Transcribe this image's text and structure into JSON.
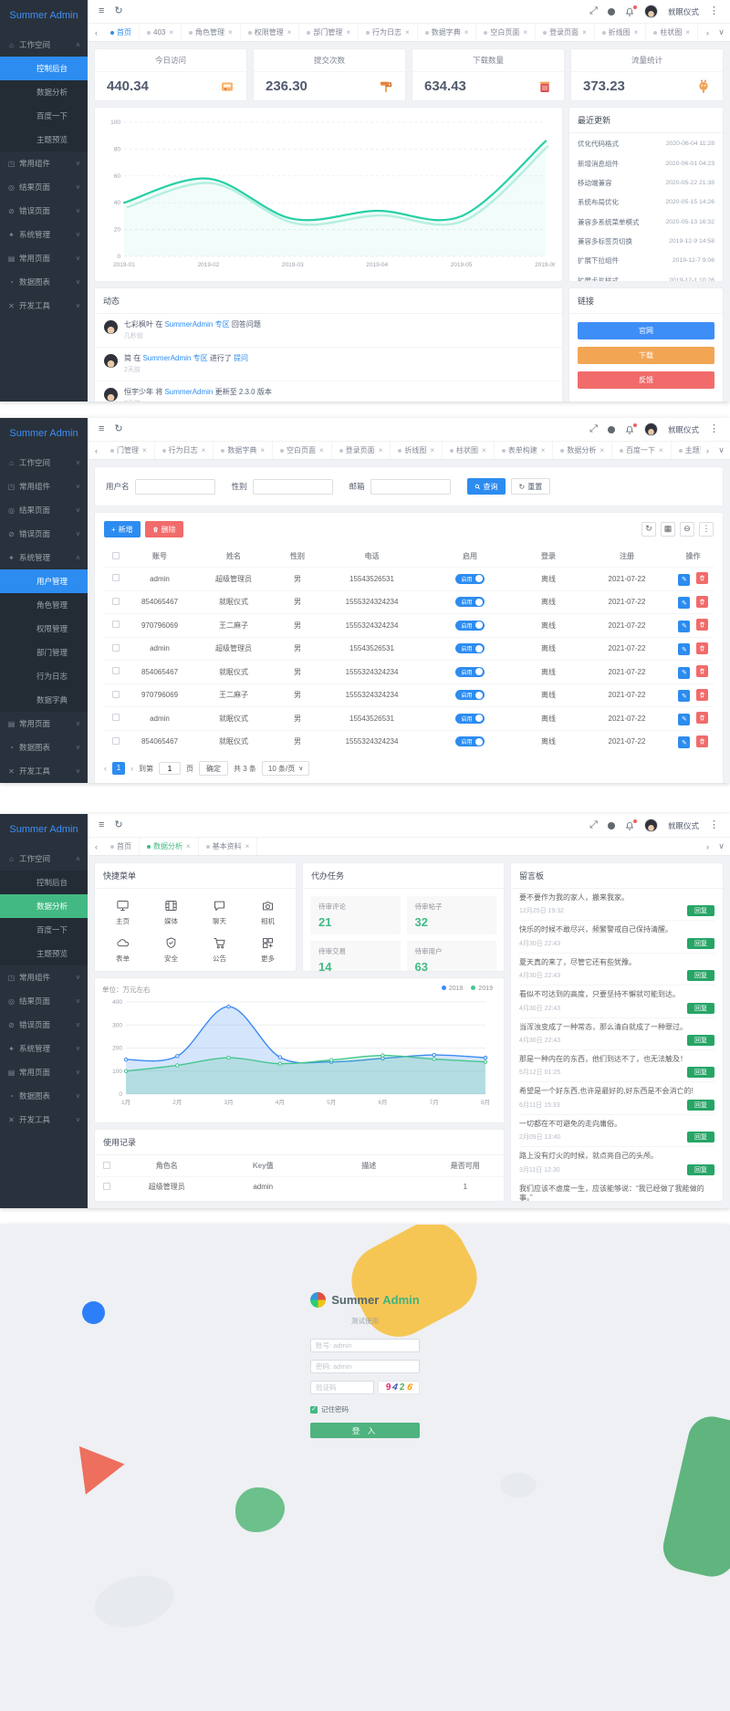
{
  "brand": "Summer Admin",
  "topbar": {
    "user": "就眠仪式"
  },
  "chrome": {
    "menu": "≡",
    "refresh": "↻",
    "fullscreen": "⤢",
    "more": "⋮",
    "back": "‹",
    "fwd": "›",
    "down": "∨",
    "plus": "+",
    "check": "✓",
    "edit": "✎",
    "cols": "▦",
    "minus": "⊖",
    "dots": "⋮"
  },
  "s1": {
    "menu": [
      {
        "ic": "⌂",
        "label": "工作空间",
        "arrow": "∧"
      },
      {
        "label": "控制后台",
        "cls": "sub active"
      },
      {
        "label": "数据分析",
        "cls": "sub"
      },
      {
        "label": "百度一下",
        "cls": "sub"
      },
      {
        "label": "主题预览",
        "cls": "sub"
      },
      {
        "ic": "◳",
        "label": "常用组件",
        "arrow": "∨"
      },
      {
        "ic": "◎",
        "label": "结果页面",
        "arrow": "∨"
      },
      {
        "ic": "⊘",
        "label": "错误页面",
        "arrow": "∨"
      },
      {
        "ic": "✦",
        "label": "系统管理",
        "arrow": "∨"
      },
      {
        "ic": "▤",
        "label": "常用页面",
        "arrow": "∨"
      },
      {
        "ic": "◔",
        "label": "数据图表",
        "arrow": "∨"
      },
      {
        "ic": "✕",
        "label": "开发工具",
        "arrow": "∨"
      }
    ],
    "tabs": [
      {
        "label": "首页",
        "cls": "active",
        "x": ""
      },
      {
        "label": "403",
        "x": "×"
      },
      {
        "label": "角色管理",
        "x": "×"
      },
      {
        "label": "权限管理",
        "x": "×"
      },
      {
        "label": "部门管理",
        "x": "×"
      },
      {
        "label": "行为日志",
        "x": "×"
      },
      {
        "label": "数据字典",
        "x": "×"
      },
      {
        "label": "空白页面",
        "x": "×"
      },
      {
        "label": "登录页面",
        "x": "×"
      },
      {
        "label": "折线图",
        "x": "×"
      },
      {
        "label": "柱状图",
        "x": "×"
      },
      {
        "label": "表单构建",
        "x": "×"
      }
    ],
    "cards": [
      {
        "title": "今日访问",
        "value": "440.34"
      },
      {
        "title": "提交次数",
        "value": "236.30"
      },
      {
        "title": "下载数量",
        "value": "634.43"
      },
      {
        "title": "流量统计",
        "value": "373.23"
      }
    ],
    "chart": {
      "type": "line",
      "x": [
        "2019-01",
        "2019-02",
        "2019-03",
        "2019-04",
        "2019-05",
        "2019-06"
      ],
      "yticks": [
        0,
        20,
        40,
        60,
        80,
        100
      ],
      "series": [
        {
          "name": "访问量",
          "color": "#27d0a5",
          "values": [
            40,
            58,
            28,
            34,
            30,
            86
          ]
        }
      ]
    },
    "updates": {
      "title": "最近更新",
      "items": [
        {
          "label": "优化代码格式",
          "time": "2020-06-04 11:28"
        },
        {
          "label": "新增消息组件",
          "time": "2020-06-01 04:23"
        },
        {
          "label": "移动端兼容",
          "time": "2020-05-22 21:38"
        },
        {
          "label": "系统布局优化",
          "time": "2020-05-15 14:26"
        },
        {
          "label": "兼容多系统菜单模式",
          "time": "2020-05-13 16:32"
        },
        {
          "label": "兼容多标签页切换",
          "time": "2019-12-9 14:58"
        },
        {
          "label": "扩展下拉组件",
          "time": "2019-12-7 9:06"
        },
        {
          "label": "扩展卡片样式",
          "time": "2019-12-1 10:26"
        }
      ]
    },
    "activity": {
      "title": "动态",
      "items": [
        {
          "user": "七彩枫叶",
          "t1": "在",
          "l1": "SummerAdmin 专区",
          "t2": "回答问题",
          "l2": "",
          "time": "几秒前"
        },
        {
          "user": "简",
          "t1": "在",
          "l1": "SummerAdmin 专区",
          "t2": "进行了",
          "l2": "提问",
          "time": "2天前"
        },
        {
          "user": "恒宇少年",
          "t1": "将",
          "l1": "SummerAdmin",
          "t2": "更新至 2.3.0 版本",
          "l2": "",
          "time": "7天前"
        }
      ]
    },
    "links": {
      "title": "链接",
      "items": [
        {
          "label": "官网",
          "cls": "blue"
        },
        {
          "label": "下载",
          "cls": "orange"
        },
        {
          "label": "反馈",
          "cls": "red"
        }
      ]
    }
  },
  "s2": {
    "menu": [
      {
        "ic": "⌂",
        "label": "工作空间",
        "arrow": "∨"
      },
      {
        "ic": "◳",
        "label": "常用组件",
        "arrow": "∨"
      },
      {
        "ic": "◎",
        "label": "结果页面",
        "arrow": "∨"
      },
      {
        "ic": "⊘",
        "label": "错误页面",
        "arrow": "∨"
      },
      {
        "ic": "✦",
        "label": "系统管理",
        "arrow": "∧"
      },
      {
        "label": "用户管理",
        "cls": "sub active"
      },
      {
        "label": "角色管理",
        "cls": "sub"
      },
      {
        "label": "权限管理",
        "cls": "sub"
      },
      {
        "label": "部门管理",
        "cls": "sub"
      },
      {
        "label": "行为日志",
        "cls": "sub"
      },
      {
        "label": "数据字典",
        "cls": "sub"
      },
      {
        "ic": "▤",
        "label": "常用页面",
        "arrow": "∨"
      },
      {
        "ic": "◔",
        "label": "数据图表",
        "arrow": "∨"
      },
      {
        "ic": "✕",
        "label": "开发工具",
        "arrow": "∨"
      }
    ],
    "tabs": [
      {
        "label": "门管理",
        "x": "×"
      },
      {
        "label": "行为日志",
        "x": "×"
      },
      {
        "label": "数据字典",
        "x": "×"
      },
      {
        "label": "空白页面",
        "x": "×"
      },
      {
        "label": "登录页面",
        "x": "×"
      },
      {
        "label": "折线图",
        "x": "×"
      },
      {
        "label": "柱状图",
        "x": "×"
      },
      {
        "label": "表单构建",
        "x": "×"
      },
      {
        "label": "数据分析",
        "x": "×"
      },
      {
        "label": "百度一下",
        "x": "×"
      },
      {
        "label": "主题预览",
        "x": "×"
      },
      {
        "label": "用户管理",
        "cls": "active",
        "x": "×"
      }
    ],
    "search": {
      "fields": [
        {
          "label": "用户名"
        },
        {
          "label": "性别"
        },
        {
          "label": "邮箱"
        }
      ],
      "query": "查询",
      "reset": "重置"
    },
    "toolbar": {
      "add": "新增",
      "del": "删除"
    },
    "table": {
      "headers": [
        "账号",
        "姓名",
        "性别",
        "电话",
        "启用",
        "登录",
        "注册",
        "操作"
      ],
      "rows": [
        {
          "account": "admin",
          "name": "超级管理员",
          "sex": "男",
          "phone": "15543526531",
          "enabled": "启用",
          "login": "离线",
          "reg": "2021-07-22"
        },
        {
          "account": "854065467",
          "name": "就眠仪式",
          "sex": "男",
          "phone": "1555324324234",
          "enabled": "启用",
          "login": "离线",
          "reg": "2021-07-22"
        },
        {
          "account": "970796069",
          "name": "王二麻子",
          "sex": "男",
          "phone": "1555324324234",
          "enabled": "启用",
          "login": "离线",
          "reg": "2021-07-22"
        },
        {
          "account": "admin",
          "name": "超级管理员",
          "sex": "男",
          "phone": "15543526531",
          "enabled": "启用",
          "login": "离线",
          "reg": "2021-07-22"
        },
        {
          "account": "854065467",
          "name": "就眠仪式",
          "sex": "男",
          "phone": "1555324324234",
          "enabled": "启用",
          "login": "离线",
          "reg": "2021-07-22"
        },
        {
          "account": "970796069",
          "name": "王二麻子",
          "sex": "男",
          "phone": "1555324324234",
          "enabled": "启用",
          "login": "离线",
          "reg": "2021-07-22"
        },
        {
          "account": "admin",
          "name": "就眠仪式",
          "sex": "男",
          "phone": "15543526531",
          "enabled": "启用",
          "login": "离线",
          "reg": "2021-07-22"
        },
        {
          "account": "854065467",
          "name": "就眠仪式",
          "sex": "男",
          "phone": "1555324324234",
          "enabled": "启用",
          "login": "离线",
          "reg": "2021-07-22"
        }
      ]
    },
    "pagination": {
      "prev": "‹",
      "page": "1",
      "next": "›",
      "jump_pre": "到第",
      "jump_val": "1",
      "jump_post": "页",
      "confirm": "确定",
      "total": "共 3 条",
      "size": "10 条/页",
      "size_arrow": "∨"
    }
  },
  "s3": {
    "menu": [
      {
        "ic": "⌂",
        "label": "工作空间",
        "arrow": "∧"
      },
      {
        "label": "控制后台",
        "cls": "sub"
      },
      {
        "label": "数据分析",
        "cls": "sub active"
      },
      {
        "label": "百度一下",
        "cls": "sub"
      },
      {
        "label": "主题预览",
        "cls": "sub"
      },
      {
        "ic": "◳",
        "label": "常用组件",
        "arrow": "∨"
      },
      {
        "ic": "◎",
        "label": "结果页面",
        "arrow": "∨"
      },
      {
        "ic": "⊘",
        "label": "错误页面",
        "arrow": "∨"
      },
      {
        "ic": "✦",
        "label": "系统管理",
        "arrow": "∨"
      },
      {
        "ic": "▤",
        "label": "常用页面",
        "arrow": "∨"
      },
      {
        "ic": "◔",
        "label": "数据图表",
        "arrow": "∨"
      },
      {
        "ic": "✕",
        "label": "开发工具",
        "arrow": "∨"
      }
    ],
    "tabs": [
      {
        "label": "首页",
        "x": ""
      },
      {
        "label": "数据分析",
        "cls": "active",
        "x": "×"
      },
      {
        "label": "基本资料",
        "x": "×"
      }
    ],
    "shortcut": {
      "title": "快捷菜单",
      "items": [
        "主页",
        "媒体",
        "聊天",
        "相机",
        "表单",
        "安全",
        "公告",
        "更多"
      ]
    },
    "todo": {
      "title": "代办任务",
      "items": [
        {
          "label": "待审评论",
          "num": "21"
        },
        {
          "label": "待审帖子",
          "num": "32"
        },
        {
          "label": "待审交易",
          "num": "14"
        },
        {
          "label": "待审用户",
          "num": "63"
        }
      ]
    },
    "chart": {
      "type": "area",
      "unit": "单位：万元左右",
      "x": [
        "1月",
        "2月",
        "3月",
        "4月",
        "5月",
        "6月",
        "7月",
        "8月"
      ],
      "yticks": [
        0,
        100,
        200,
        300,
        400
      ],
      "legend": [
        "2018",
        "2019"
      ],
      "series": [
        {
          "name": "2018",
          "color": "#3d8af2",
          "values": [
            150,
            165,
            380,
            160,
            140,
            155,
            170,
            158
          ]
        },
        {
          "name": "2019",
          "color": "#45c68f",
          "values": [
            100,
            125,
            158,
            132,
            148,
            168,
            152,
            140
          ]
        }
      ]
    },
    "usage": {
      "title": "使用记录",
      "headers": [
        "角色名",
        "Key值",
        "描述",
        "是否可用"
      ],
      "rows": [
        {
          "role": "超级管理员",
          "key": "admin",
          "desc": "",
          "avail": "1"
        }
      ]
    },
    "board": {
      "title": "留言板",
      "reply": "回复",
      "items": [
        {
          "text": "要不要作为我的家人，搬来我家。",
          "time": "12月25日 19:32"
        },
        {
          "text": "快乐的时候不敢尽兴，频繁警戒自己保持清醒。",
          "time": "4月30日 22:43"
        },
        {
          "text": "夏天真的来了，尽管它还有些犹豫。",
          "time": "4月30日 22:43"
        },
        {
          "text": "看似不可达到的高度，只要坚持不懈就可能到达。",
          "time": "4月30日 22:43"
        },
        {
          "text": "当浑浊变成了一种常态，那么清白就成了一种罪过。",
          "time": "4月30日 22:43"
        },
        {
          "text": "那是一种内在的东西，他们到达不了，也无法触及！",
          "time": "5月12日 01:25"
        },
        {
          "text": "希望是一个好东西,也许是最好的,好东西是不会消亡的!",
          "time": "6月11日 15:33"
        },
        {
          "text": "一切都在不可避免的走向庸俗。",
          "time": "2月09日 13:40"
        },
        {
          "text": "路上没有灯火的时候，就点亮自己的头颅。",
          "time": "3月11日 12:30"
        },
        {
          "text": "我们应该不虚度一生，应该能够说：“我已经做了我能做的事。”",
          "time": "4月30日 22:43"
        }
      ]
    }
  },
  "s4": {
    "title_a": "Summer",
    "title_b": "Admin",
    "subtitle": "测试使用",
    "ph_user": "账号: admin",
    "ph_pass": "密码: admin",
    "ph_code": "验证码",
    "captcha": [
      "9",
      "4",
      "2",
      "6"
    ],
    "remember": "记住密码",
    "submit": "登 入"
  }
}
